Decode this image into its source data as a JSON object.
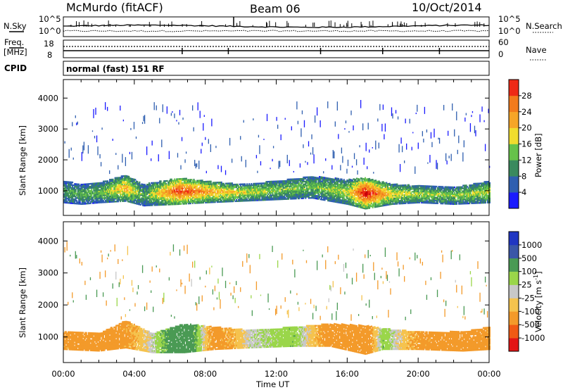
{
  "header": {
    "station": "McMurdo (fitACF)",
    "beam": "Beam 06",
    "date": "10/Oct/2014"
  },
  "summary_panel": {
    "nsky_label": "N.Sky",
    "nsearch_label": "N.Search",
    "freq_label": "Freq.",
    "freq_unit": "[MHz]",
    "nave_label": "Nave",
    "cpid_label": "CPID",
    "cpid_value": "normal (fast) 151 RF",
    "noise_ticks": [
      "10^5",
      "10^0"
    ],
    "freq_ticks": [
      "18",
      "8"
    ],
    "nave_ticks": [
      "60",
      "0"
    ]
  },
  "colors": {
    "power": [
      "#1a1aff",
      "#2f5fb0",
      "#3a8a5e",
      "#66c24a",
      "#f0dc2e",
      "#f6a528",
      "#f27b1c",
      "#ee2a16",
      "#c8000a"
    ],
    "velocity": [
      "#e31515",
      "#f05a14",
      "#f39a2a",
      "#f5c34e",
      "#c8c8c8",
      "#9ad64a",
      "#4a9a54",
      "#3a57a8",
      "#2036c2"
    ]
  },
  "chart_data": [
    {
      "type": "heatmap",
      "name": "power",
      "xlabel": "",
      "ylabel": "Slant Range [km]",
      "y_ticks": [
        "1000",
        "2000",
        "3000",
        "4000"
      ],
      "ylim": [
        200,
        4600
      ],
      "xlim": [
        0,
        24
      ],
      "colorbar": {
        "label": "Power [dB]",
        "ticks": [
          "4",
          "8",
          "12",
          "16",
          "20",
          "24",
          "28"
        ],
        "range": [
          0,
          32
        ]
      },
      "echo_band": [
        {
          "t": 0.0,
          "lo": 600,
          "hi": 1300,
          "level": 9
        },
        {
          "t": 1.0,
          "lo": 550,
          "hi": 1200,
          "level": 10
        },
        {
          "t": 2.0,
          "lo": 600,
          "hi": 1250,
          "level": 11
        },
        {
          "t": 3.5,
          "lo": 650,
          "hi": 1500,
          "level": 18
        },
        {
          "t": 4.5,
          "lo": 500,
          "hi": 1200,
          "level": 9
        },
        {
          "t": 6.5,
          "lo": 550,
          "hi": 1400,
          "level": 26
        },
        {
          "t": 8.0,
          "lo": 600,
          "hi": 1300,
          "level": 20
        },
        {
          "t": 10.0,
          "lo": 650,
          "hi": 1200,
          "level": 15
        },
        {
          "t": 12.0,
          "lo": 700,
          "hi": 1300,
          "level": 12
        },
        {
          "t": 14.0,
          "lo": 750,
          "hi": 1450,
          "level": 11
        },
        {
          "t": 16.0,
          "lo": 550,
          "hi": 1350,
          "level": 14
        },
        {
          "t": 17.0,
          "lo": 400,
          "hi": 1400,
          "level": 29
        },
        {
          "t": 18.5,
          "lo": 550,
          "hi": 1200,
          "level": 16
        },
        {
          "t": 20.0,
          "lo": 600,
          "hi": 1150,
          "level": 13
        },
        {
          "t": 22.0,
          "lo": 550,
          "hi": 1100,
          "level": 12
        },
        {
          "t": 24.0,
          "lo": 600,
          "hi": 1300,
          "level": 14
        }
      ]
    },
    {
      "type": "heatmap",
      "name": "velocity",
      "xlabel": "Time UT",
      "ylabel": "Slant Range [km]",
      "x_ticks": [
        "00:00",
        "04:00",
        "08:00",
        "12:00",
        "16:00",
        "20:00",
        "00:00"
      ],
      "y_ticks": [
        "1000",
        "2000",
        "3000",
        "4000"
      ],
      "ylim": [
        200,
        4600
      ],
      "xlim": [
        0,
        24
      ],
      "colorbar": {
        "label": "Velocity [m s^-1]",
        "ticks": [
          "-1000",
          "-500",
          "-100",
          "-25",
          "25",
          "100",
          "500",
          "1000"
        ]
      },
      "echo_band": [
        {
          "t": 0.0,
          "lo": 600,
          "hi": 1150,
          "vel": -150
        },
        {
          "t": 2.0,
          "lo": 550,
          "hi": 1100,
          "vel": -200
        },
        {
          "t": 3.5,
          "lo": 650,
          "hi": 1500,
          "vel": -150
        },
        {
          "t": 5.0,
          "lo": 500,
          "hi": 1100,
          "vel": 5
        },
        {
          "t": 6.8,
          "lo": 500,
          "hi": 1400,
          "vel": 300
        },
        {
          "t": 8.5,
          "lo": 600,
          "hi": 1300,
          "vel": -200
        },
        {
          "t": 10.5,
          "lo": 650,
          "hi": 1200,
          "vel": 5
        },
        {
          "t": 13.0,
          "lo": 700,
          "hi": 1300,
          "vel": 80
        },
        {
          "t": 15.0,
          "lo": 700,
          "hi": 1400,
          "vel": -200
        },
        {
          "t": 17.0,
          "lo": 450,
          "hi": 1350,
          "vel": -250
        },
        {
          "t": 18.0,
          "lo": 600,
          "hi": 1250,
          "vel": 80
        },
        {
          "t": 20.0,
          "lo": 600,
          "hi": 1150,
          "vel": -150
        },
        {
          "t": 22.5,
          "lo": 550,
          "hi": 1150,
          "vel": -200
        },
        {
          "t": 24.0,
          "lo": 600,
          "hi": 1300,
          "vel": -150
        }
      ]
    }
  ]
}
